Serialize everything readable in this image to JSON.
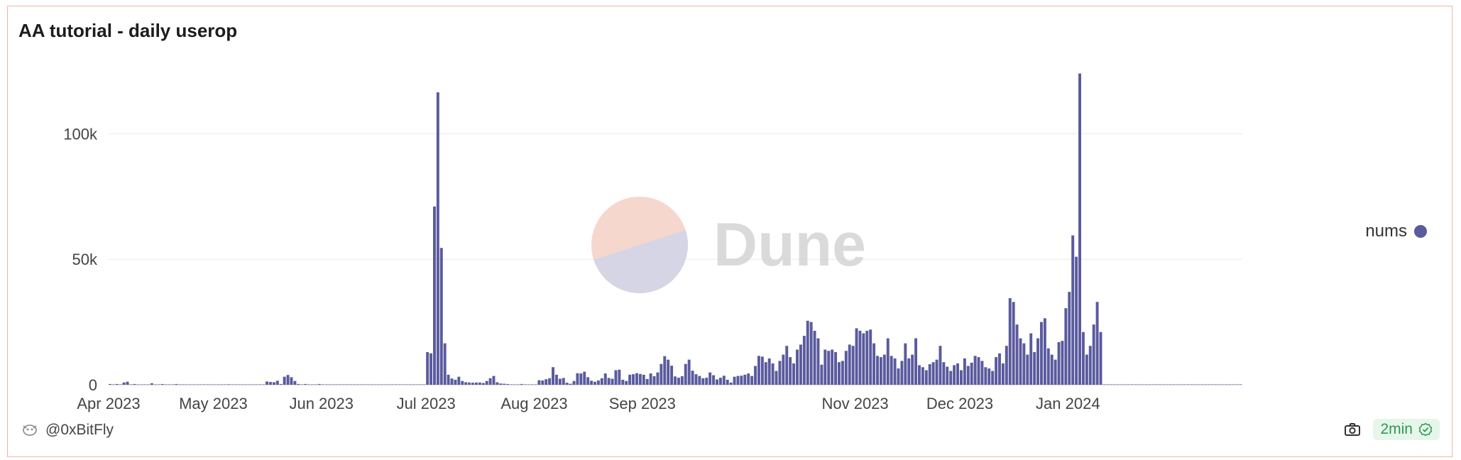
{
  "header": {
    "title": "AA tutorial - daily userop"
  },
  "footer": {
    "author": "@0xBitFly",
    "freshness": "2min"
  },
  "watermark": {
    "text": "Dune"
  },
  "colors": {
    "bar": "#5a5a9e",
    "border": "#f0b5a6",
    "grid": "#e9e9e9",
    "fresh_bg": "#e6f6ea",
    "fresh_fg": "#2e9a4f"
  },
  "chart_data": {
    "type": "bar",
    "title": "AA tutorial - daily userop",
    "series": [
      {
        "name": "nums",
        "color": "#5a5a9e"
      }
    ],
    "x_start": "2023-04-01",
    "x_end": "2024-02-20",
    "xticks": [
      {
        "date": "2023-04-01",
        "label": "Apr 2023"
      },
      {
        "date": "2023-05-01",
        "label": "May 2023"
      },
      {
        "date": "2023-06-01",
        "label": "Jun 2023"
      },
      {
        "date": "2023-07-01",
        "label": "Jul 2023"
      },
      {
        "date": "2023-08-01",
        "label": "Aug 2023"
      },
      {
        "date": "2023-09-01",
        "label": "Sep 2023"
      },
      {
        "date": "2023-11-01",
        "label": "Nov 2023"
      },
      {
        "date": "2023-12-01",
        "label": "Dec 2023"
      },
      {
        "date": "2024-01-01",
        "label": "Jan 2024"
      }
    ],
    "yticks": [
      {
        "value": 0,
        "label": "0"
      },
      {
        "value": 50000,
        "label": "50k"
      },
      {
        "value": 100000,
        "label": "100k"
      }
    ],
    "ylim": [
      0,
      125000
    ],
    "legend_position": "right",
    "grid": true,
    "points": [
      [
        "2023-04-01",
        300
      ],
      [
        "2023-04-03",
        300
      ],
      [
        "2023-04-05",
        900
      ],
      [
        "2023-04-06",
        1200
      ],
      [
        "2023-04-08",
        300
      ],
      [
        "2023-04-13",
        600
      ],
      [
        "2023-04-16",
        300
      ],
      [
        "2023-04-20",
        300
      ],
      [
        "2023-05-05",
        200
      ],
      [
        "2023-05-20",
        300
      ],
      [
        "2023-05-31",
        300
      ],
      [
        "2023-05-27",
        300
      ],
      [
        "2023-05-16",
        1300
      ],
      [
        "2023-05-17",
        1100
      ],
      [
        "2023-05-18",
        1000
      ],
      [
        "2023-05-19",
        1600
      ],
      [
        "2023-05-21",
        3200
      ],
      [
        "2023-05-22",
        3900
      ],
      [
        "2023-05-23",
        3000
      ],
      [
        "2023-05-24",
        1500
      ],
      [
        "2023-05-25",
        300
      ],
      [
        "2023-07-01",
        13000
      ],
      [
        "2023-07-02",
        12500
      ],
      [
        "2023-07-03",
        71000
      ],
      [
        "2023-07-04",
        116500
      ],
      [
        "2023-07-05",
        54500
      ],
      [
        "2023-07-06",
        16500
      ],
      [
        "2023-07-07",
        4000
      ],
      [
        "2023-07-08",
        2500
      ],
      [
        "2023-07-09",
        2000
      ],
      [
        "2023-07-10",
        3200
      ],
      [
        "2023-07-11",
        1500
      ],
      [
        "2023-07-12",
        1000
      ],
      [
        "2023-07-13",
        900
      ],
      [
        "2023-07-14",
        800
      ],
      [
        "2023-07-15",
        900
      ],
      [
        "2023-07-16",
        900
      ],
      [
        "2023-07-17",
        700
      ],
      [
        "2023-07-18",
        1500
      ],
      [
        "2023-07-19",
        2600
      ],
      [
        "2023-07-20",
        3500
      ],
      [
        "2023-07-21",
        1000
      ],
      [
        "2023-07-22",
        500
      ],
      [
        "2023-07-23",
        400
      ],
      [
        "2023-07-24",
        300
      ],
      [
        "2023-07-28",
        300
      ],
      [
        "2023-08-02",
        1800
      ],
      [
        "2023-08-03",
        1700
      ],
      [
        "2023-08-04",
        2200
      ],
      [
        "2023-08-05",
        2600
      ],
      [
        "2023-08-06",
        7000
      ],
      [
        "2023-08-07",
        4000
      ],
      [
        "2023-08-08",
        2400
      ],
      [
        "2023-08-09",
        2700
      ],
      [
        "2023-08-10",
        800
      ],
      [
        "2023-08-11",
        400
      ],
      [
        "2023-08-12",
        1500
      ],
      [
        "2023-08-13",
        4600
      ],
      [
        "2023-08-14",
        4500
      ],
      [
        "2023-08-15",
        5200
      ],
      [
        "2023-08-16",
        3000
      ],
      [
        "2023-08-17",
        1600
      ],
      [
        "2023-08-18",
        1200
      ],
      [
        "2023-08-19",
        1700
      ],
      [
        "2023-08-20",
        2600
      ],
      [
        "2023-08-21",
        4500
      ],
      [
        "2023-08-22",
        2700
      ],
      [
        "2023-08-23",
        2400
      ],
      [
        "2023-08-24",
        5800
      ],
      [
        "2023-08-25",
        6000
      ],
      [
        "2023-08-26",
        2000
      ],
      [
        "2023-08-27",
        1500
      ],
      [
        "2023-08-28",
        4000
      ],
      [
        "2023-08-29",
        4200
      ],
      [
        "2023-08-30",
        4600
      ],
      [
        "2023-08-31",
        4300
      ],
      [
        "2023-09-01",
        4000
      ],
      [
        "2023-09-02",
        2300
      ],
      [
        "2023-09-03",
        4500
      ],
      [
        "2023-09-04",
        3400
      ],
      [
        "2023-09-05",
        4900
      ],
      [
        "2023-09-06",
        8300
      ],
      [
        "2023-09-07",
        11400
      ],
      [
        "2023-09-08",
        10000
      ],
      [
        "2023-09-09",
        7600
      ],
      [
        "2023-09-10",
        3300
      ],
      [
        "2023-09-11",
        2800
      ],
      [
        "2023-09-12",
        3400
      ],
      [
        "2023-09-13",
        8300
      ],
      [
        "2023-09-14",
        10000
      ],
      [
        "2023-09-15",
        5600
      ],
      [
        "2023-09-16",
        4200
      ],
      [
        "2023-09-17",
        3500
      ],
      [
        "2023-09-18",
        2600
      ],
      [
        "2023-09-19",
        2800
      ],
      [
        "2023-09-20",
        4900
      ],
      [
        "2023-09-21",
        3800
      ],
      [
        "2023-09-22",
        2100
      ],
      [
        "2023-09-23",
        2800
      ],
      [
        "2023-09-24",
        3600
      ],
      [
        "2023-09-25",
        2000
      ],
      [
        "2023-09-26",
        900
      ],
      [
        "2023-09-27",
        3200
      ],
      [
        "2023-09-28",
        3500
      ],
      [
        "2023-09-29",
        3600
      ],
      [
        "2023-09-30",
        4000
      ],
      [
        "2023-10-01",
        4500
      ],
      [
        "2023-10-02",
        3500
      ],
      [
        "2023-10-03",
        7500
      ],
      [
        "2023-10-04",
        11500
      ],
      [
        "2023-10-05",
        11200
      ],
      [
        "2023-10-06",
        9000
      ],
      [
        "2023-10-07",
        10500
      ],
      [
        "2023-10-08",
        8500
      ],
      [
        "2023-10-09",
        5500
      ],
      [
        "2023-10-10",
        9500
      ],
      [
        "2023-10-11",
        12000
      ],
      [
        "2023-10-12",
        15500
      ],
      [
        "2023-10-13",
        11000
      ],
      [
        "2023-10-14",
        8500
      ],
      [
        "2023-10-15",
        14000
      ],
      [
        "2023-10-16",
        16000
      ],
      [
        "2023-10-17",
        19500
      ],
      [
        "2023-10-18",
        25500
      ],
      [
        "2023-10-19",
        25000
      ],
      [
        "2023-10-20",
        21500
      ],
      [
        "2023-10-21",
        18500
      ],
      [
        "2023-10-22",
        8000
      ],
      [
        "2023-10-23",
        14000
      ],
      [
        "2023-10-24",
        13500
      ],
      [
        "2023-10-25",
        14000
      ],
      [
        "2023-10-26",
        13000
      ],
      [
        "2023-10-27",
        9000
      ],
      [
        "2023-10-28",
        9500
      ],
      [
        "2023-10-29",
        13500
      ],
      [
        "2023-10-30",
        16000
      ],
      [
        "2023-10-31",
        15500
      ],
      [
        "2023-11-01",
        22500
      ],
      [
        "2023-11-02",
        21500
      ],
      [
        "2023-11-03",
        20500
      ],
      [
        "2023-11-04",
        21500
      ],
      [
        "2023-11-05",
        22000
      ],
      [
        "2023-11-06",
        16500
      ],
      [
        "2023-11-07",
        11500
      ],
      [
        "2023-11-08",
        11000
      ],
      [
        "2023-11-09",
        12000
      ],
      [
        "2023-11-10",
        18500
      ],
      [
        "2023-11-11",
        11500
      ],
      [
        "2023-11-12",
        10500
      ],
      [
        "2023-11-13",
        6500
      ],
      [
        "2023-11-14",
        9500
      ],
      [
        "2023-11-15",
        16500
      ],
      [
        "2023-11-16",
        10500
      ],
      [
        "2023-11-17",
        12000
      ],
      [
        "2023-11-18",
        18500
      ],
      [
        "2023-11-19",
        7800
      ],
      [
        "2023-11-20",
        7000
      ],
      [
        "2023-11-21",
        5800
      ],
      [
        "2023-11-22",
        8200
      ],
      [
        "2023-11-23",
        9000
      ],
      [
        "2023-11-24",
        10000
      ],
      [
        "2023-11-25",
        15500
      ],
      [
        "2023-11-26",
        9000
      ],
      [
        "2023-11-27",
        7200
      ],
      [
        "2023-11-28",
        5500
      ],
      [
        "2023-11-29",
        7800
      ],
      [
        "2023-11-30",
        8500
      ],
      [
        "2023-12-01",
        5800
      ],
      [
        "2023-12-02",
        10500
      ],
      [
        "2023-12-03",
        7500
      ],
      [
        "2023-12-04",
        8800
      ],
      [
        "2023-12-05",
        11500
      ],
      [
        "2023-12-06",
        11000
      ],
      [
        "2023-12-07",
        9500
      ],
      [
        "2023-12-08",
        7000
      ],
      [
        "2023-12-09",
        6500
      ],
      [
        "2023-12-10",
        5500
      ],
      [
        "2023-12-11",
        11000
      ],
      [
        "2023-12-12",
        12500
      ],
      [
        "2023-12-13",
        8500
      ],
      [
        "2023-12-14",
        15500
      ],
      [
        "2023-12-15",
        34500
      ],
      [
        "2023-12-16",
        33000
      ],
      [
        "2023-12-17",
        24000
      ],
      [
        "2023-12-18",
        18500
      ],
      [
        "2023-12-19",
        16500
      ],
      [
        "2023-12-20",
        12000
      ],
      [
        "2023-12-21",
        20500
      ],
      [
        "2023-12-22",
        13000
      ],
      [
        "2023-12-23",
        18500
      ],
      [
        "2023-12-24",
        25000
      ],
      [
        "2023-12-25",
        26500
      ],
      [
        "2023-12-26",
        14500
      ],
      [
        "2023-12-27",
        12000
      ],
      [
        "2023-12-28",
        10000
      ],
      [
        "2023-12-29",
        17000
      ],
      [
        "2023-12-30",
        17500
      ],
      [
        "2023-12-31",
        30500
      ],
      [
        "2024-01-01",
        37000
      ],
      [
        "2024-01-02",
        59500
      ],
      [
        "2024-01-03",
        51000
      ],
      [
        "2024-01-04",
        124000
      ],
      [
        "2024-01-05",
        21000
      ],
      [
        "2024-01-06",
        12000
      ],
      [
        "2024-01-07",
        15500
      ],
      [
        "2024-01-08",
        24000
      ],
      [
        "2024-01-09",
        33000
      ],
      [
        "2024-01-10",
        21000
      ]
    ]
  }
}
